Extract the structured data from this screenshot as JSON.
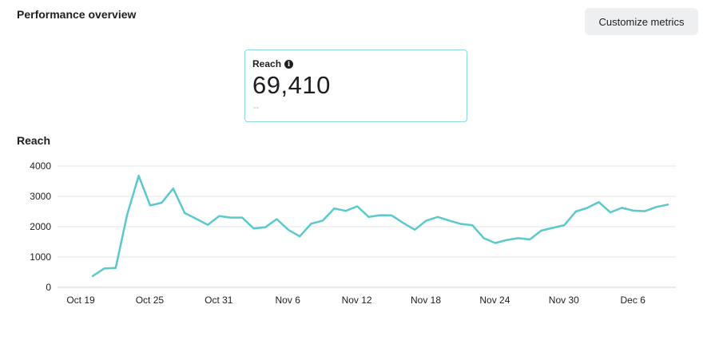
{
  "header": {
    "title": "Performance overview",
    "customize_label": "Customize metrics"
  },
  "metric": {
    "label": "Reach",
    "info_icon": "info-icon",
    "value": "69,410",
    "delta": "--"
  },
  "colors": {
    "line": "#5ac8cc",
    "grid": "#e4e6eb",
    "card_border": "#8ed9dc"
  },
  "chart_data": {
    "type": "line",
    "title": "Reach",
    "x_tick_labels": [
      "Oct 19",
      "Oct 25",
      "Oct 31",
      "Nov 6",
      "Nov 12",
      "Nov 18",
      "Nov 24",
      "Nov 30",
      "Dec 6"
    ],
    "y_ticks": [
      0,
      1000,
      2000,
      3000,
      4000
    ],
    "ylim": [
      0,
      4000
    ],
    "grid": true,
    "x": [
      "Oct 20",
      "Oct 21",
      "Oct 22",
      "Oct 23",
      "Oct 24",
      "Oct 25",
      "Oct 26",
      "Oct 27",
      "Oct 28",
      "Oct 29",
      "Oct 30",
      "Oct 31",
      "Nov 1",
      "Nov 2",
      "Nov 3",
      "Nov 4",
      "Nov 5",
      "Nov 6",
      "Nov 7",
      "Nov 8",
      "Nov 9",
      "Nov 10",
      "Nov 11",
      "Nov 12",
      "Nov 13",
      "Nov 14",
      "Nov 15",
      "Nov 16",
      "Nov 17",
      "Nov 18",
      "Nov 19",
      "Nov 20",
      "Nov 21",
      "Nov 22",
      "Nov 23",
      "Nov 24",
      "Nov 25",
      "Nov 26",
      "Nov 27",
      "Nov 28",
      "Nov 29",
      "Nov 30",
      "Dec 1",
      "Dec 2",
      "Dec 3",
      "Dec 4",
      "Dec 5",
      "Dec 6",
      "Dec 7",
      "Dec 8",
      "Dec 9"
    ],
    "series": [
      {
        "values": [
          370,
          620,
          640,
          2400,
          3680,
          2700,
          2790,
          3260,
          2450,
          2260,
          2060,
          2350,
          2300,
          2300,
          1940,
          1980,
          2250,
          1900,
          1680,
          2100,
          2200,
          2600,
          2520,
          2670,
          2320,
          2380,
          2370,
          2120,
          1900,
          2200,
          2320,
          2200,
          2090,
          2050,
          1620,
          1460,
          1560,
          1620,
          1580,
          1870,
          1960,
          2050,
          2500,
          2620,
          2810,
          2470,
          2620,
          2530,
          2510,
          2650,
          2730
        ]
      }
    ]
  }
}
